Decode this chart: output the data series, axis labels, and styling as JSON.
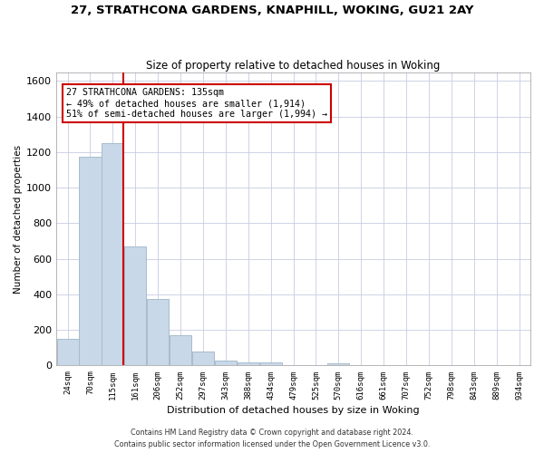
{
  "title1": "27, STRATHCONA GARDENS, KNAPHILL, WOKING, GU21 2AY",
  "title2": "Size of property relative to detached houses in Woking",
  "xlabel": "Distribution of detached houses by size in Woking",
  "ylabel": "Number of detached properties",
  "categories": [
    "24sqm",
    "70sqm",
    "115sqm",
    "161sqm",
    "206sqm",
    "252sqm",
    "297sqm",
    "343sqm",
    "388sqm",
    "434sqm",
    "479sqm",
    "525sqm",
    "570sqm",
    "616sqm",
    "661sqm",
    "707sqm",
    "752sqm",
    "798sqm",
    "843sqm",
    "889sqm",
    "934sqm"
  ],
  "values": [
    150,
    1175,
    1250,
    670,
    375,
    170,
    80,
    30,
    20,
    18,
    0,
    0,
    15,
    0,
    0,
    0,
    0,
    0,
    0,
    0,
    0
  ],
  "bar_color": "#c8d8e8",
  "bar_edge_color": "#a8bccb",
  "grid_color": "#c8cce0",
  "property_line_index": 2.45,
  "property_line_color": "#cc0000",
  "annotation_text": "27 STRATHCONA GARDENS: 135sqm\n← 49% of detached houses are smaller (1,914)\n51% of semi-detached houses are larger (1,994) →",
  "annotation_box_color": "#ffffff",
  "annotation_box_edge": "#cc0000",
  "ylim": [
    0,
    1650
  ],
  "yticks": [
    0,
    200,
    400,
    600,
    800,
    1000,
    1200,
    1400,
    1600
  ],
  "footer1": "Contains HM Land Registry data © Crown copyright and database right 2024.",
  "footer2": "Contains public sector information licensed under the Open Government Licence v3.0."
}
